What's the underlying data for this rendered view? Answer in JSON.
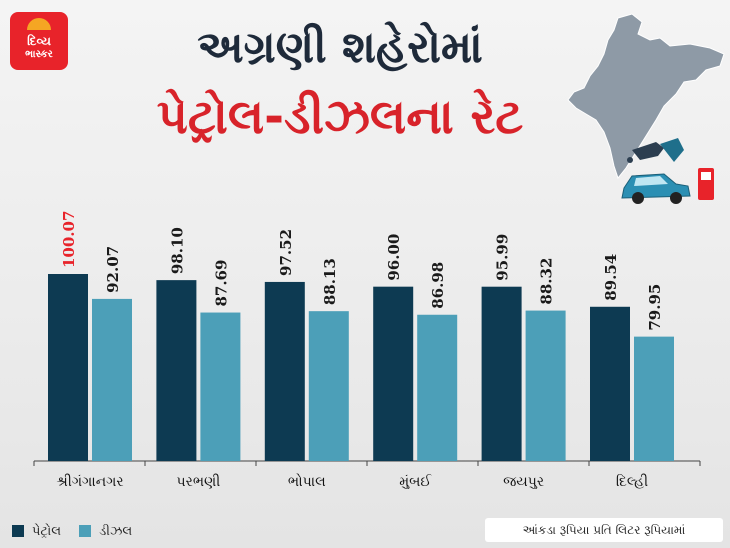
{
  "logo": {
    "line1": "દિવ્ય",
    "line2": "ભાસ્કર"
  },
  "title": "અગ્રણી શહેરોમાં",
  "subtitle": "પેટ્રોલ-ડીઝલના રેટ",
  "note": "આંકડા રૂપિયા પ્રતિ લિટર રૂપિયામાં",
  "colors": {
    "petrol": "#0d3a52",
    "diesel": "#4c9fb8",
    "highlight": "#e8232a",
    "value": "#1a1a1a",
    "title": "#1e2a3a",
    "subtitle": "#d8232a"
  },
  "legend": {
    "petrol": "પેટ્રોલ",
    "diesel": "ડીઝલ"
  },
  "chart_data": {
    "type": "bar",
    "categories": [
      "શ્રીગંગાનગર",
      "પરભણી",
      "ભોપાલ",
      "મુંબઈ",
      "જયપુર",
      "દિલ્હી"
    ],
    "series": [
      {
        "name": "પેટ્રોલ",
        "values": [
          100.07,
          98.1,
          97.52,
          96.0,
          95.99,
          89.54
        ]
      },
      {
        "name": "ડીઝલ",
        "values": [
          92.07,
          87.69,
          88.13,
          86.98,
          88.32,
          79.95
        ]
      }
    ],
    "highlight": {
      "series": 0,
      "index": 0
    },
    "grid": false,
    "legend_position": "bottom-left"
  }
}
